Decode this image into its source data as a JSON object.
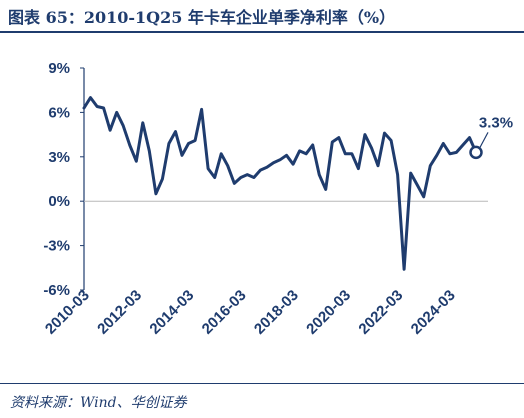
{
  "header": {
    "title": "图表 65：2010-1Q25 年卡车企业单季净利率（%）"
  },
  "footer": {
    "source": "资料来源：Wind、华创证券"
  },
  "colors": {
    "accent": "#1f3c6e",
    "zero_line": "#b8b8b8"
  },
  "chart_data": {
    "type": "line",
    "title": "2010-1Q25 年卡车企业单季净利率（%）",
    "xlabel": "",
    "ylabel": "",
    "x_start": "2010-03",
    "x_tick_labels": [
      "2010-03",
      "2012-03",
      "2014-03",
      "2016-03",
      "2018-03",
      "2020-03",
      "2022-03",
      "2024-03"
    ],
    "y_tick_labels": [
      "9%",
      "6%",
      "3%",
      "0%",
      "-3%",
      "-6%"
    ],
    "y_ticks": [
      9,
      6,
      3,
      0,
      -3,
      -6
    ],
    "ylim": [
      -6,
      9
    ],
    "grid": false,
    "series": [
      {
        "name": "",
        "x": [
          "2010-03",
          "2010-06",
          "2010-09",
          "2010-12",
          "2011-03",
          "2011-06",
          "2011-09",
          "2011-12",
          "2012-03",
          "2012-06",
          "2012-09",
          "2012-12",
          "2013-03",
          "2013-06",
          "2013-09",
          "2013-12",
          "2014-03",
          "2014-06",
          "2014-09",
          "2014-12",
          "2015-03",
          "2015-06",
          "2015-09",
          "2015-12",
          "2016-03",
          "2016-06",
          "2016-09",
          "2016-12",
          "2017-03",
          "2017-06",
          "2017-09",
          "2017-12",
          "2018-03",
          "2018-06",
          "2018-09",
          "2018-12",
          "2019-03",
          "2019-06",
          "2019-09",
          "2019-12",
          "2020-03",
          "2020-06",
          "2020-09",
          "2020-12",
          "2021-03",
          "2021-06",
          "2021-09",
          "2021-12",
          "2022-03",
          "2022-06",
          "2022-09",
          "2022-12",
          "2023-03",
          "2023-06",
          "2023-09",
          "2023-12",
          "2024-03",
          "2024-06",
          "2024-09",
          "2024-12",
          "2025-03"
        ],
        "values": [
          6.3,
          7.0,
          6.4,
          6.3,
          4.8,
          6.0,
          5.1,
          3.8,
          2.7,
          5.3,
          3.4,
          0.5,
          1.5,
          3.9,
          4.7,
          3.1,
          3.9,
          4.1,
          6.2,
          2.2,
          1.6,
          3.2,
          2.4,
          1.2,
          1.6,
          1.8,
          1.6,
          2.1,
          2.3,
          2.6,
          2.8,
          3.1,
          2.5,
          3.4,
          3.2,
          3.8,
          1.8,
          0.8,
          4.0,
          4.3,
          3.2,
          3.2,
          2.2,
          4.5,
          3.6,
          2.4,
          4.6,
          4.1,
          1.8,
          -4.6,
          1.9,
          1.1,
          0.3,
          2.4,
          3.1,
          3.9,
          3.2,
          3.3,
          3.8,
          4.3,
          3.3
        ]
      }
    ],
    "annotations": [
      {
        "text": "3.3%",
        "x": "2025-03",
        "y": 3.3
      }
    ]
  }
}
